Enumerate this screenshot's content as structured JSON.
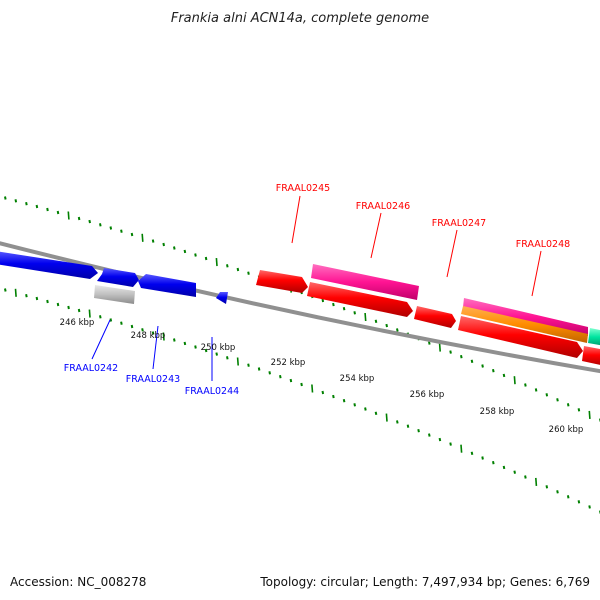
{
  "title": "Frankia alni ACN14a, complete genome",
  "footer": {
    "accession": "Accession: NC_008278",
    "summary": "Topology: circular; Length: 7,497,934 bp; Genes: 6,769"
  },
  "colors": {
    "reverse_strand": "#0000ff",
    "forward_strand": "#ff0000",
    "pink": "#ff1493",
    "orange": "#ff8c00",
    "grey_feature": "#c0c0c0",
    "teal": "#00e5a0",
    "tick": "#008000",
    "backbone": "#808080"
  },
  "ticks": [
    {
      "label": "246 kbp"
    },
    {
      "label": "248 kbp"
    },
    {
      "label": "250 kbp"
    },
    {
      "label": "252 kbp"
    },
    {
      "label": "254 kbp"
    },
    {
      "label": "256 kbp"
    },
    {
      "label": "258 kbp"
    },
    {
      "label": "260 kbp"
    }
  ],
  "gene_labels": {
    "top": [
      "FRAAL0245",
      "FRAAL0246",
      "FRAAL0247",
      "FRAAL0248"
    ],
    "bottom": [
      "FRAAL0242",
      "FRAAL0243",
      "FRAAL0244"
    ]
  }
}
